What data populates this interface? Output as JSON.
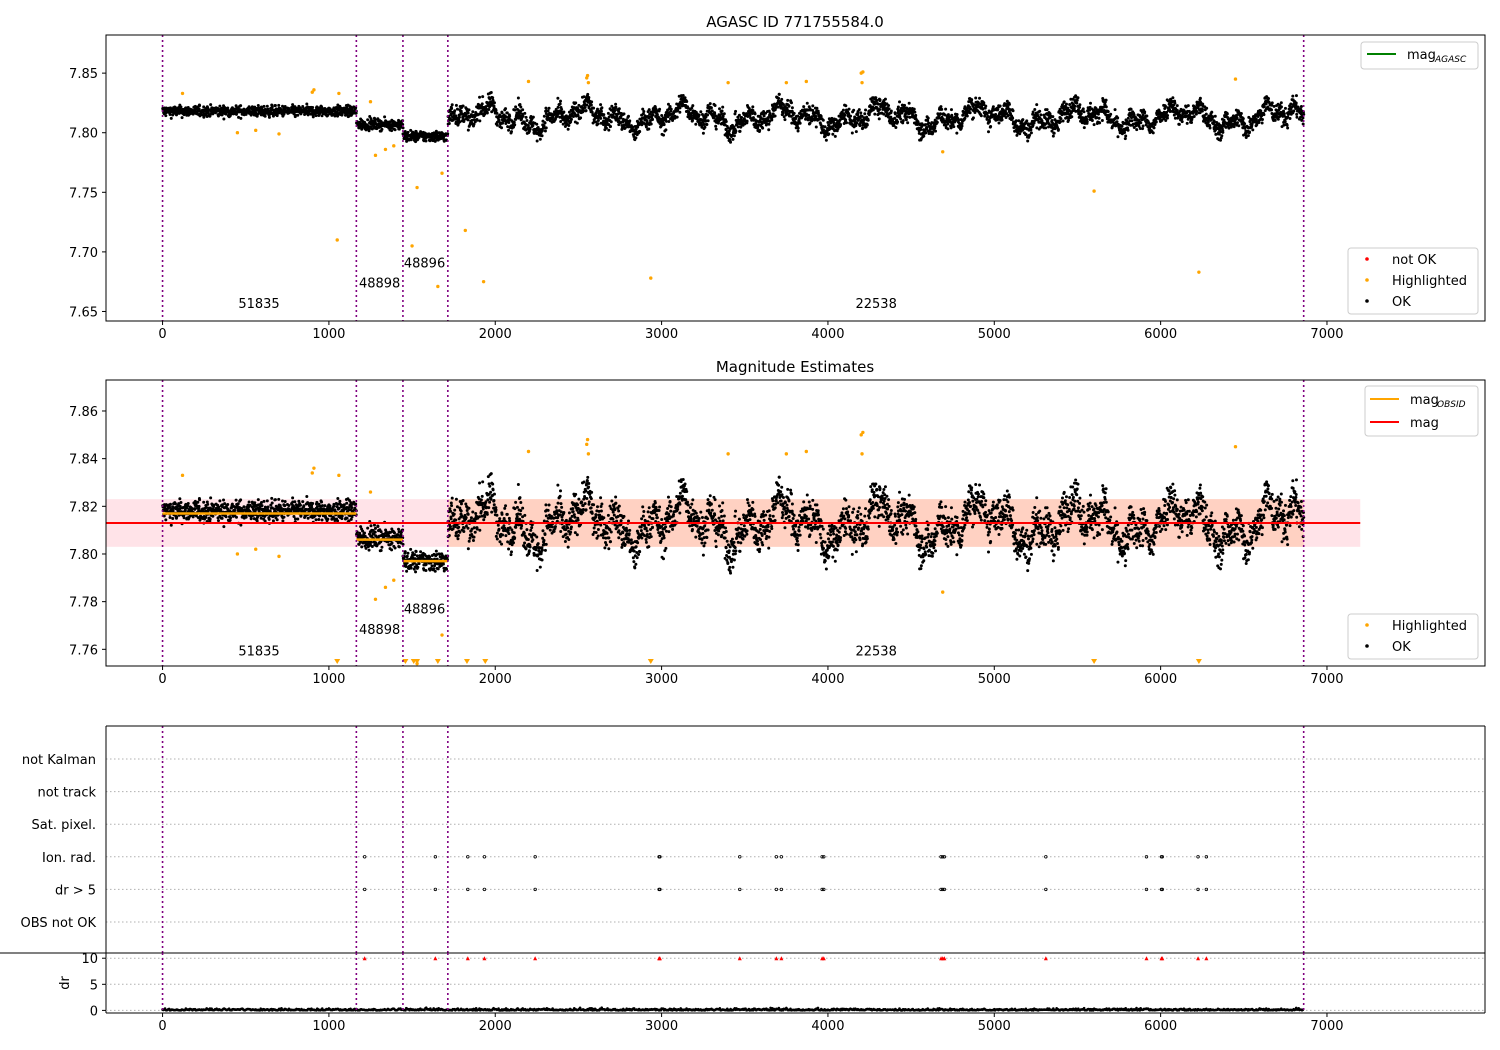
{
  "figure": {
    "title_top": "AGASC ID 771755584.0",
    "title_mid": "Magnitude Estimates"
  },
  "chart_data": [
    {
      "type": "scatter",
      "title": "AGASC ID 771755584.0",
      "xlim": [
        -340,
        7950
      ],
      "ylim": [
        7.642,
        7.882
      ],
      "xticks": [
        0,
        1000,
        2000,
        3000,
        4000,
        5000,
        6000,
        7000
      ],
      "yticks": [
        7.65,
        7.7,
        7.75,
        7.8,
        7.85
      ],
      "ytick_labels": [
        "7.65",
        "7.70",
        "7.75",
        "7.80",
        "7.85"
      ],
      "vlines": [
        0,
        1165,
        1445,
        1715,
        6860
      ],
      "obsid_labels": [
        {
          "text": "51835",
          "x": 580,
          "y": 7.653
        },
        {
          "text": "48898",
          "x": 1305,
          "y": 7.67
        },
        {
          "text": "48896",
          "x": 1575,
          "y": 7.687
        },
        {
          "text": "22538",
          "x": 4290,
          "y": 7.653
        }
      ],
      "legend_top": [
        {
          "label": "mag",
          "sub": "AGASC",
          "color": "#008000",
          "kind": "line"
        }
      ],
      "legend_bottom": [
        {
          "label": "not OK",
          "color": "#ff0000"
        },
        {
          "label": "Highlighted",
          "color": "#ffa500"
        },
        {
          "label": "OK",
          "color": "#000000"
        }
      ],
      "segments": [
        {
          "x0": 0,
          "x1": 1165,
          "base": 7.818,
          "noise": 0.0045
        },
        {
          "x0": 1165,
          "x1": 1445,
          "base": 7.807,
          "noise": 0.0045
        },
        {
          "x0": 1445,
          "x1": 1715,
          "base": 7.797,
          "noise": 0.0045
        },
        {
          "x0": 1715,
          "x1": 6860,
          "base": 7.813,
          "noise": 0.008
        }
      ],
      "highlighted_points": [
        [
          120,
          7.833
        ],
        [
          450,
          7.8
        ],
        [
          560,
          7.802
        ],
        [
          700,
          7.799
        ],
        [
          900,
          7.834
        ],
        [
          910,
          7.836
        ],
        [
          1050,
          7.71
        ],
        [
          1060,
          7.833
        ],
        [
          1250,
          7.826
        ],
        [
          1280,
          7.781
        ],
        [
          1340,
          7.786
        ],
        [
          1390,
          7.789
        ],
        [
          1530,
          7.754
        ],
        [
          1500,
          7.705
        ],
        [
          1655,
          7.671
        ],
        [
          1680,
          7.766
        ],
        [
          1820,
          7.718
        ],
        [
          1930,
          7.675
        ],
        [
          2200,
          7.843
        ],
        [
          2550,
          7.846
        ],
        [
          2555,
          7.848
        ],
        [
          2560,
          7.842
        ],
        [
          2935,
          7.678
        ],
        [
          3400,
          7.842
        ],
        [
          3750,
          7.842
        ],
        [
          3870,
          7.843
        ],
        [
          4200,
          7.85
        ],
        [
          4210,
          7.851
        ],
        [
          4205,
          7.842
        ],
        [
          4690,
          7.784
        ],
        [
          5600,
          7.751
        ],
        [
          6230,
          7.683
        ],
        [
          6450,
          7.845
        ]
      ]
    },
    {
      "type": "scatter",
      "title": "Magnitude Estimates",
      "xlim": [
        -340,
        7950
      ],
      "ylim": [
        7.753,
        7.873
      ],
      "xticks": [
        0,
        1000,
        2000,
        3000,
        4000,
        5000,
        6000,
        7000
      ],
      "yticks": [
        7.76,
        7.78,
        7.8,
        7.82,
        7.84,
        7.86
      ],
      "ytick_labels": [
        "7.76",
        "7.78",
        "7.80",
        "7.82",
        "7.84",
        "7.86"
      ],
      "mag": 7.813,
      "band_inner": [
        7.803,
        7.823
      ],
      "band_xlim": [
        -340,
        7200
      ],
      "obsid_mags": [
        {
          "x0": 0,
          "x1": 1165,
          "mag": 7.817
        },
        {
          "x0": 1165,
          "x1": 1445,
          "mag": 7.806
        },
        {
          "x0": 1445,
          "x1": 1715,
          "mag": 7.797
        }
      ],
      "obsid_labels": [
        {
          "text": "51835",
          "x": 580,
          "y": 7.7575
        },
        {
          "text": "48898",
          "x": 1305,
          "y": 7.7665
        },
        {
          "text": "48896",
          "x": 1575,
          "y": 7.775
        },
        {
          "text": "22538",
          "x": 4290,
          "y": 7.7575
        }
      ],
      "below_range_markers": [
        1050,
        1460,
        1510,
        1530,
        1655,
        1830,
        1940,
        2935,
        5600,
        6230
      ],
      "legend_top": [
        {
          "label": "mag",
          "sub": "OBSID",
          "color": "#ffa500"
        },
        {
          "label": "mag",
          "sub": "",
          "color": "#ff0000"
        }
      ],
      "legend_bottom": [
        {
          "label": "Highlighted",
          "color": "#ffa500"
        },
        {
          "label": "OK",
          "color": "#000000"
        }
      ]
    },
    {
      "type": "scatter",
      "title": "",
      "flag_labels": [
        "not Kalman",
        "not track",
        "Sat. pixel.",
        "Ion. rad.",
        "dr > 5",
        "OBS not OK"
      ],
      "flag_points": [
        1215,
        1640,
        1835,
        1935,
        2240,
        2985,
        2990,
        3470,
        3690,
        3720,
        3965,
        3975,
        4680,
        4690,
        4700,
        5310,
        5915,
        6005,
        6010,
        6225,
        6275
      ],
      "dr_ylabel": "dr",
      "dr_yticks": [
        0,
        5,
        10
      ],
      "dr_ylim": [
        -0.5,
        11
      ],
      "xticks": [
        0,
        1000,
        2000,
        3000,
        4000,
        5000,
        6000,
        7000
      ]
    }
  ]
}
